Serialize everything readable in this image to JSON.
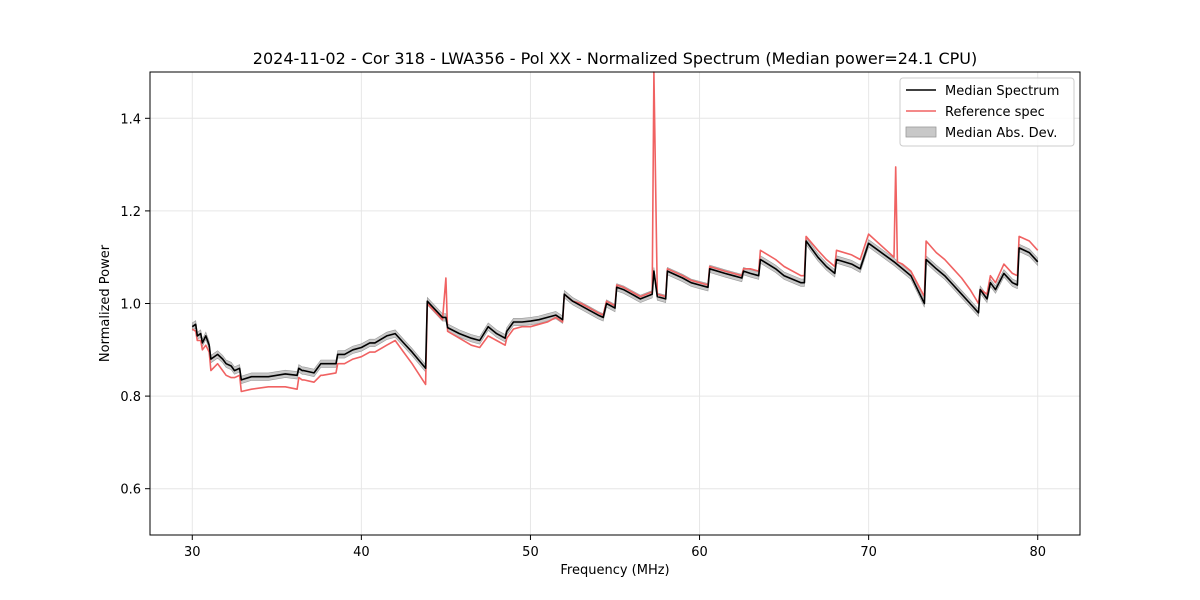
{
  "chart_data": {
    "type": "line",
    "title": "2024-11-02 - Cor 318 - LWA356 - Pol XX - Normalized Spectrum (Median power=24.1 CPU)",
    "xlabel": "Frequency (MHz)",
    "ylabel": "Normalized Power",
    "xlim": [
      27.5,
      82.5
    ],
    "ylim": [
      0.5,
      1.5
    ],
    "xticks": [
      30,
      40,
      50,
      60,
      70,
      80
    ],
    "yticks": [
      0.6,
      0.8,
      1.0,
      1.2,
      1.4
    ],
    "grid": true,
    "legend_position": "top-right",
    "colors": {
      "median": "#000000",
      "reference": "#f06262",
      "mad_fill": "#c8c8c8",
      "grid": "#e6e6e6"
    },
    "series": [
      {
        "name": "Median Spectrum",
        "x": [
          30.0,
          30.2,
          30.3,
          30.5,
          30.6,
          30.8,
          31.0,
          31.1,
          31.5,
          31.8,
          32.0,
          32.3,
          32.5,
          32.8,
          32.9,
          33.5,
          34.5,
          35.5,
          36.2,
          36.3,
          36.5,
          36.6,
          37.2,
          37.6,
          37.7,
          38.5,
          38.6,
          39.0,
          39.5,
          40.0,
          40.5,
          40.8,
          41.5,
          42.0,
          42.5,
          43.0,
          43.8,
          43.9,
          44.8,
          45.0,
          45.1,
          45.8,
          46.5,
          47.0,
          47.5,
          48.0,
          48.5,
          48.6,
          49.0,
          49.5,
          50.0,
          50.5,
          51.0,
          51.5,
          51.9,
          52.0,
          52.5,
          53.0,
          53.5,
          54.0,
          54.3,
          54.5,
          55.0,
          55.1,
          55.5,
          56.0,
          56.5,
          57.2,
          57.3,
          57.5,
          58.0,
          58.1,
          59.0,
          59.5,
          60.0,
          60.5,
          60.6,
          61.5,
          62.0,
          62.5,
          62.6,
          63.0,
          63.5,
          63.6,
          64.5,
          65.0,
          66.0,
          66.2,
          66.3,
          67.0,
          67.5,
          68.0,
          68.1,
          69.0,
          69.5,
          70.0,
          71.5,
          72.0,
          72.5,
          73.3,
          73.4,
          74.0,
          74.5,
          75.0,
          75.5,
          76.0,
          76.5,
          76.6,
          77.0,
          77.2,
          77.5,
          78.0,
          78.5,
          78.8,
          78.9,
          79.5,
          80.0
        ],
        "values": [
          0.95,
          0.955,
          0.93,
          0.935,
          0.915,
          0.93,
          0.91,
          0.88,
          0.89,
          0.88,
          0.87,
          0.865,
          0.855,
          0.86,
          0.835,
          0.842,
          0.842,
          0.848,
          0.845,
          0.86,
          0.855,
          0.855,
          0.85,
          0.87,
          0.87,
          0.87,
          0.89,
          0.89,
          0.9,
          0.905,
          0.915,
          0.915,
          0.93,
          0.935,
          0.915,
          0.895,
          0.86,
          1.005,
          0.97,
          0.97,
          0.948,
          0.935,
          0.925,
          0.92,
          0.95,
          0.935,
          0.925,
          0.94,
          0.96,
          0.96,
          0.962,
          0.965,
          0.97,
          0.975,
          0.965,
          1.02,
          1.005,
          0.995,
          0.985,
          0.975,
          0.97,
          1.0,
          0.99,
          1.035,
          1.03,
          1.02,
          1.01,
          1.02,
          1.07,
          1.015,
          1.01,
          1.07,
          1.055,
          1.045,
          1.04,
          1.035,
          1.075,
          1.065,
          1.06,
          1.055,
          1.07,
          1.065,
          1.06,
          1.095,
          1.075,
          1.06,
          1.045,
          1.045,
          1.135,
          1.1,
          1.08,
          1.065,
          1.095,
          1.085,
          1.075,
          1.13,
          1.09,
          1.075,
          1.06,
          1.0,
          1.095,
          1.075,
          1.06,
          1.04,
          1.02,
          1.0,
          0.98,
          1.03,
          1.01,
          1.045,
          1.03,
          1.065,
          1.045,
          1.04,
          1.12,
          1.11,
          1.09
        ]
      },
      {
        "name": "Reference spec",
        "x": [
          30.0,
          30.2,
          30.3,
          30.5,
          30.6,
          30.8,
          31.0,
          31.1,
          31.5,
          31.8,
          32.0,
          32.3,
          32.5,
          32.8,
          32.9,
          33.5,
          34.5,
          35.5,
          36.2,
          36.3,
          36.5,
          36.6,
          37.2,
          37.6,
          37.7,
          38.5,
          38.6,
          39.0,
          39.5,
          40.0,
          40.5,
          40.8,
          41.5,
          42.0,
          42.5,
          43.0,
          43.8,
          43.9,
          44.8,
          45.0,
          45.1,
          45.8,
          46.5,
          47.0,
          47.5,
          48.0,
          48.5,
          48.6,
          49.0,
          49.5,
          50.0,
          50.5,
          51.0,
          51.5,
          51.9,
          52.0,
          52.5,
          53.0,
          53.5,
          54.0,
          54.3,
          54.5,
          55.0,
          55.1,
          55.5,
          56.0,
          56.5,
          57.2,
          57.3,
          57.5,
          58.0,
          58.1,
          59.0,
          59.5,
          60.0,
          60.5,
          60.6,
          61.5,
          62.0,
          62.5,
          62.6,
          63.0,
          63.5,
          63.6,
          64.5,
          65.0,
          66.0,
          66.2,
          66.3,
          67.0,
          67.5,
          68.0,
          68.1,
          69.0,
          69.5,
          70.0,
          71.5,
          71.6,
          71.7,
          72.0,
          72.5,
          73.3,
          73.4,
          74.0,
          74.5,
          75.0,
          75.5,
          76.0,
          76.5,
          76.6,
          77.0,
          77.2,
          77.5,
          78.0,
          78.5,
          78.8,
          78.9,
          79.5,
          80.0
        ],
        "values": [
          0.945,
          0.94,
          0.92,
          0.92,
          0.9,
          0.91,
          0.895,
          0.855,
          0.87,
          0.855,
          0.845,
          0.84,
          0.84,
          0.845,
          0.81,
          0.815,
          0.82,
          0.82,
          0.815,
          0.84,
          0.835,
          0.835,
          0.83,
          0.845,
          0.845,
          0.85,
          0.87,
          0.87,
          0.88,
          0.885,
          0.895,
          0.895,
          0.91,
          0.92,
          0.895,
          0.87,
          0.825,
          1.0,
          0.965,
          1.055,
          0.94,
          0.925,
          0.91,
          0.905,
          0.93,
          0.92,
          0.91,
          0.925,
          0.945,
          0.95,
          0.95,
          0.955,
          0.96,
          0.97,
          0.96,
          1.02,
          1.005,
          1.0,
          0.99,
          0.98,
          0.975,
          1.005,
          0.995,
          1.04,
          1.035,
          1.025,
          1.015,
          1.025,
          1.5,
          1.02,
          1.015,
          1.075,
          1.06,
          1.05,
          1.045,
          1.04,
          1.08,
          1.07,
          1.065,
          1.06,
          1.075,
          1.075,
          1.07,
          1.115,
          1.095,
          1.08,
          1.06,
          1.06,
          1.145,
          1.115,
          1.095,
          1.08,
          1.115,
          1.105,
          1.095,
          1.15,
          1.1,
          1.295,
          1.09,
          1.085,
          1.07,
          1.015,
          1.135,
          1.11,
          1.095,
          1.075,
          1.055,
          1.03,
          1.0,
          1.03,
          1.02,
          1.06,
          1.045,
          1.085,
          1.065,
          1.06,
          1.145,
          1.135,
          1.115
        ]
      }
    ],
    "band": {
      "name": "Median Abs. Dev.",
      "half_width": 0.008
    }
  }
}
